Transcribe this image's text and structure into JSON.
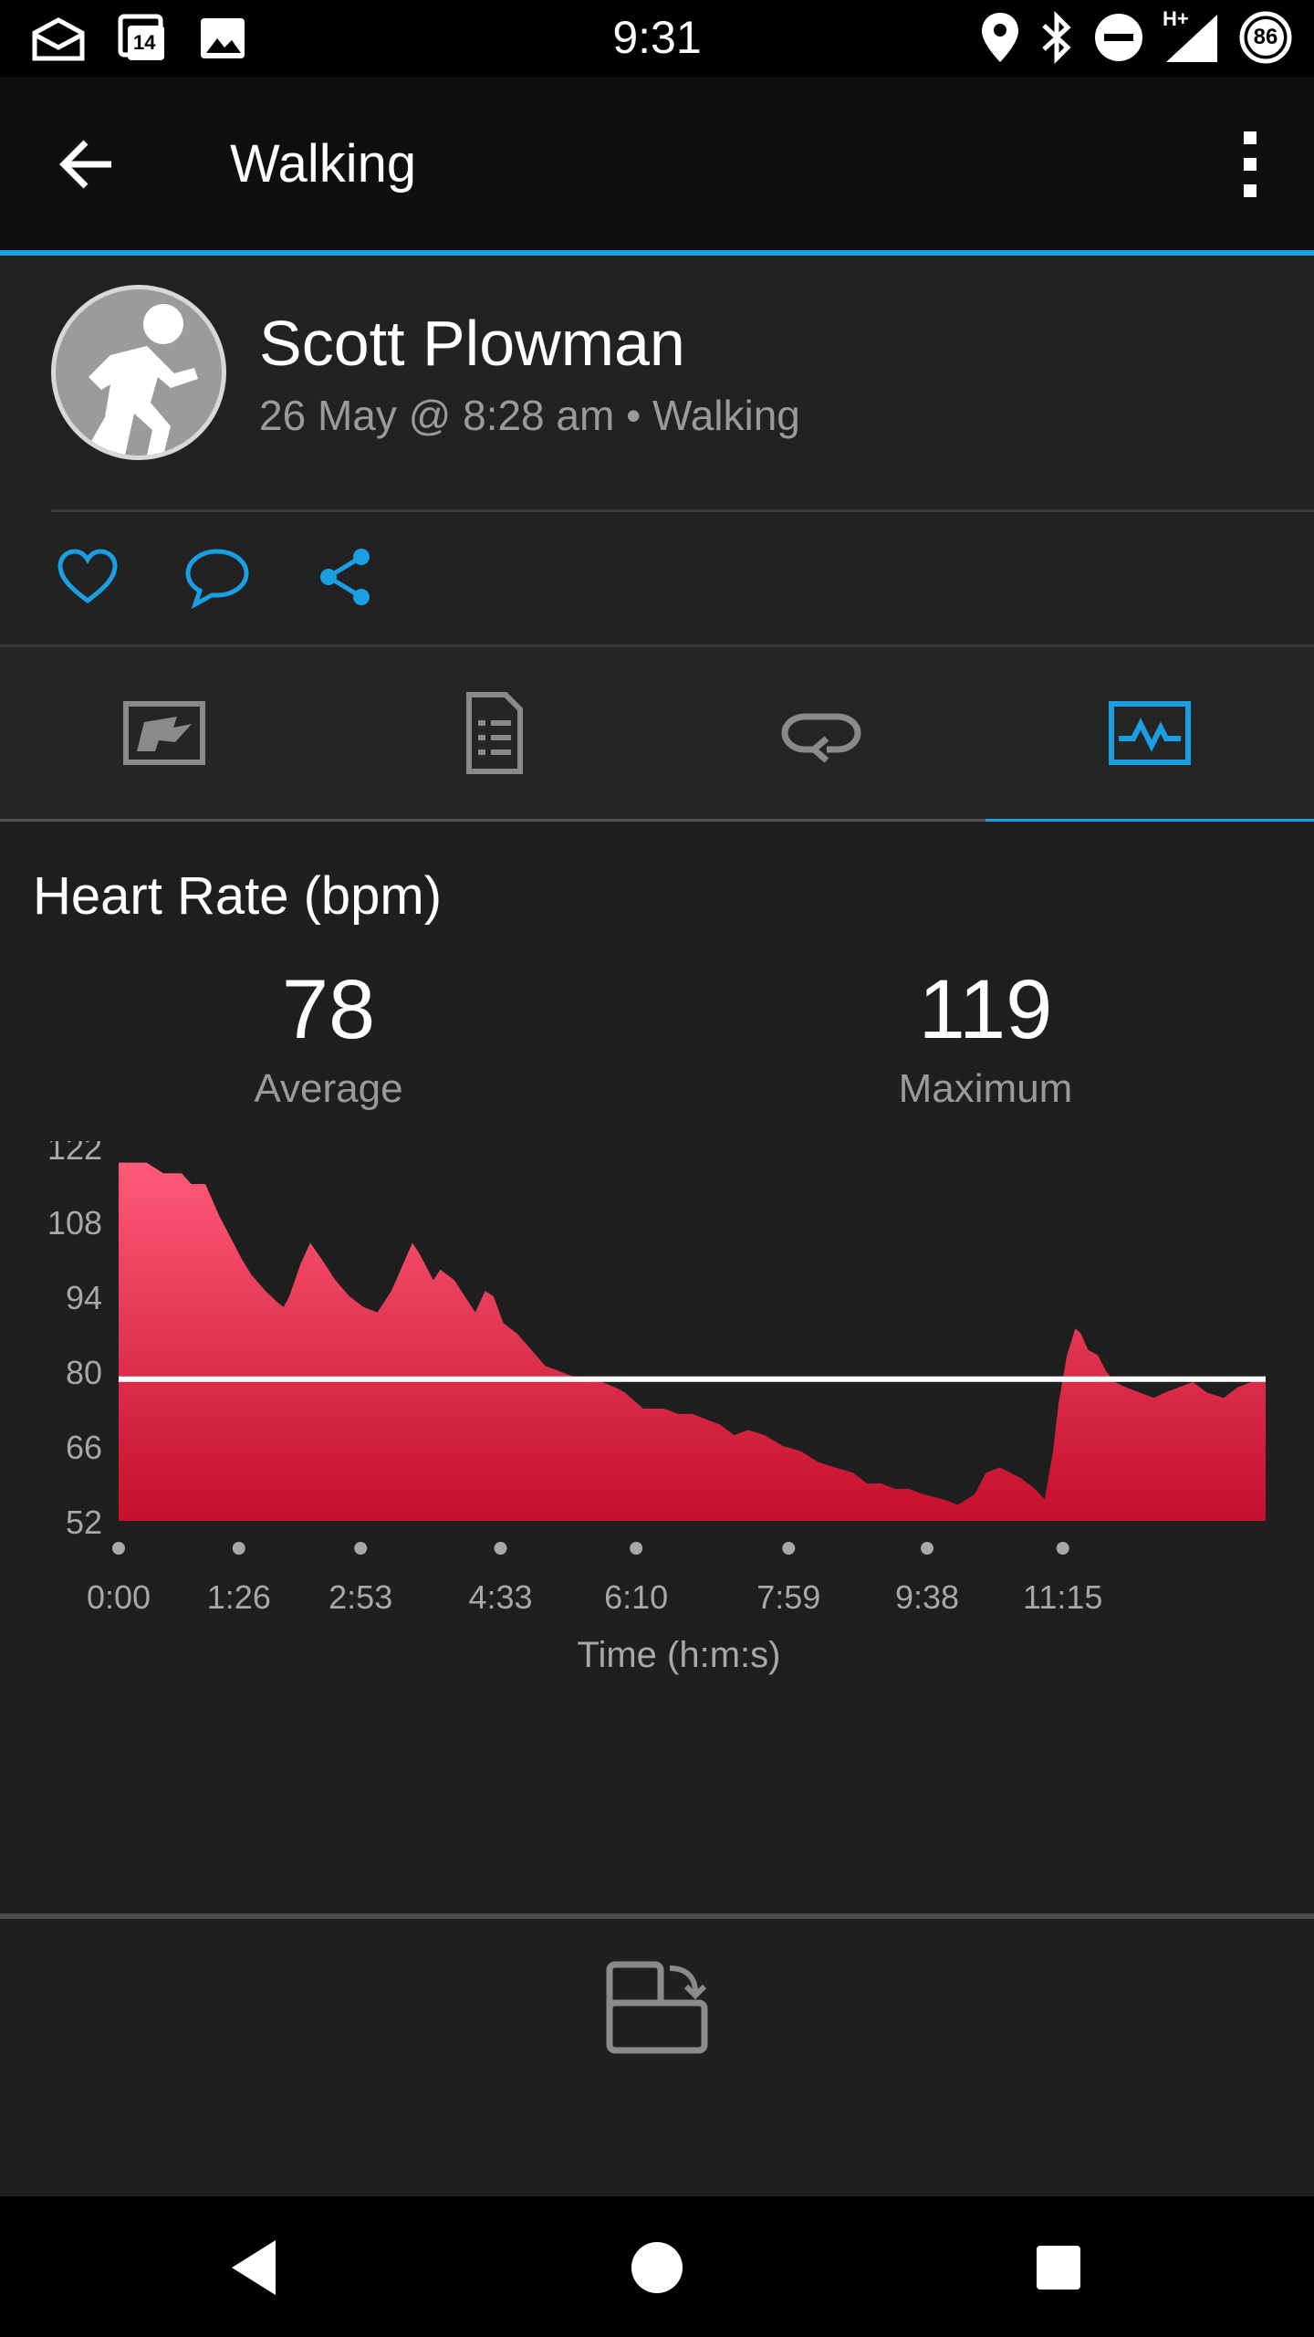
{
  "status_bar": {
    "time": "9:31",
    "notification_count": "14",
    "network": "H+",
    "battery": "86"
  },
  "app_bar": {
    "title": "Walking"
  },
  "profile": {
    "name": "Scott Plowman",
    "meta": "26 May @ 8:28 am • Walking"
  },
  "colors": {
    "accent": "#1a9fe3",
    "chart_top": "#ff5a78",
    "chart_bottom": "#c4102c",
    "average_line": "#ffffff"
  },
  "chart": {
    "title": "Heart Rate (bpm)",
    "average_value": "78",
    "average_label": "Average",
    "maximum_value": "119",
    "maximum_label": "Maximum"
  },
  "chart_data": {
    "type": "area",
    "title": "Heart Rate (bpm)",
    "xlabel": "Time (h:m:s)",
    "ylabel": "",
    "xlim": [
      0,
      820
    ],
    "ylim": [
      52,
      122
    ],
    "yticks": [
      122,
      108,
      94,
      80,
      66,
      52
    ],
    "xtick_labels": [
      "0:00",
      "1:26",
      "2:53",
      "4:33",
      "6:10",
      "7:59",
      "9:38",
      "11:15"
    ],
    "xtick_values": [
      0,
      86,
      173,
      273,
      370,
      479,
      578,
      675
    ],
    "average_line": 78.5,
    "series": [
      {
        "values": [
          [
            0,
            119
          ],
          [
            20,
            119
          ],
          [
            32,
            117
          ],
          [
            45,
            117
          ],
          [
            52,
            115
          ],
          [
            62,
            115
          ],
          [
            72,
            109
          ],
          [
            78,
            106
          ],
          [
            88,
            101
          ],
          [
            95,
            98
          ],
          [
            105,
            95
          ],
          [
            113,
            93
          ],
          [
            118,
            92
          ],
          [
            122,
            94
          ],
          [
            130,
            100
          ],
          [
            137,
            104
          ],
          [
            145,
            101
          ],
          [
            155,
            97
          ],
          [
            165,
            94
          ],
          [
            175,
            92
          ],
          [
            185,
            91
          ],
          [
            195,
            95
          ],
          [
            205,
            101
          ],
          [
            210,
            104
          ],
          [
            215,
            102
          ],
          [
            225,
            97
          ],
          [
            230,
            99
          ],
          [
            240,
            97
          ],
          [
            250,
            93
          ],
          [
            255,
            91
          ],
          [
            262,
            95
          ],
          [
            268,
            94
          ],
          [
            275,
            89
          ],
          [
            285,
            87
          ],
          [
            295,
            84
          ],
          [
            305,
            81
          ],
          [
            315,
            80
          ],
          [
            325,
            79
          ],
          [
            335,
            78
          ],
          [
            345,
            78
          ],
          [
            355,
            77
          ],
          [
            362,
            76
          ],
          [
            375,
            73
          ],
          [
            390,
            73
          ],
          [
            400,
            72
          ],
          [
            410,
            72
          ],
          [
            420,
            71
          ],
          [
            430,
            70
          ],
          [
            440,
            68
          ],
          [
            450,
            69
          ],
          [
            462,
            68
          ],
          [
            475,
            66
          ],
          [
            488,
            65
          ],
          [
            500,
            63
          ],
          [
            512,
            62
          ],
          [
            525,
            61
          ],
          [
            535,
            59
          ],
          [
            545,
            59
          ],
          [
            555,
            58
          ],
          [
            565,
            58
          ],
          [
            575,
            57
          ],
          [
            590,
            56
          ],
          [
            600,
            55
          ],
          [
            612,
            57
          ],
          [
            620,
            61
          ],
          [
            630,
            62
          ],
          [
            645,
            60
          ],
          [
            655,
            58
          ],
          [
            662,
            56
          ],
          [
            668,
            65
          ],
          [
            672,
            74
          ],
          [
            678,
            83
          ],
          [
            684,
            88
          ],
          [
            688,
            87
          ],
          [
            693,
            84
          ],
          [
            700,
            83
          ],
          [
            706,
            80
          ],
          [
            712,
            78
          ],
          [
            720,
            77
          ],
          [
            730,
            76
          ],
          [
            740,
            75
          ],
          [
            748,
            76
          ],
          [
            758,
            77
          ],
          [
            768,
            78
          ],
          [
            778,
            76
          ],
          [
            790,
            75
          ],
          [
            800,
            77
          ],
          [
            810,
            78
          ],
          [
            820,
            79
          ]
        ]
      }
    ]
  }
}
